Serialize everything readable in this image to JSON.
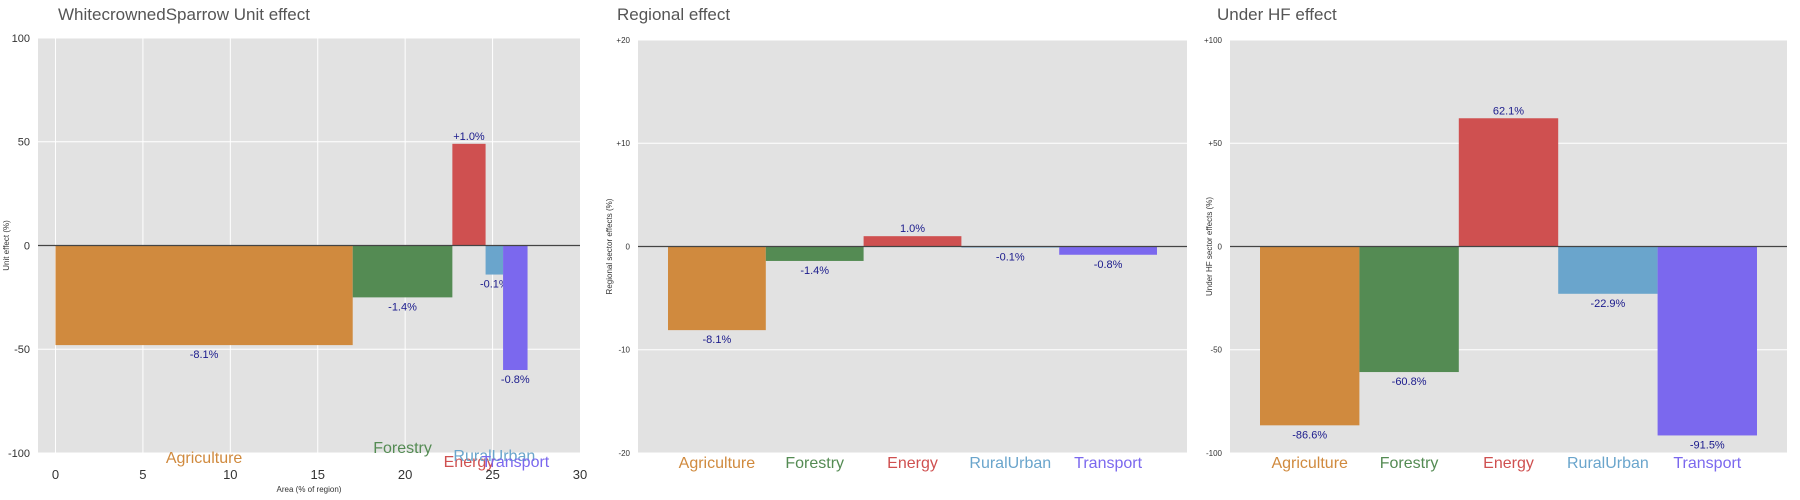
{
  "chart_data": [
    {
      "type": "bar",
      "title": "WhitecrownedSparrow Unit effect",
      "xlabel": "Area (% of region)",
      "ylabel": "Unit effect (%)",
      "xlim": [
        -1,
        30
      ],
      "ylim": [
        -100,
        100
      ],
      "xticks": [
        0,
        5,
        10,
        15,
        20,
        25,
        30
      ],
      "yticks": [
        -100,
        -50,
        0,
        50,
        100
      ],
      "ytick_labels": [
        "-100",
        "-50",
        "0",
        "50",
        "100"
      ],
      "variable_width": true,
      "grid": true,
      "categories": [
        "Agriculture",
        "Forestry",
        "Energy",
        "RuralUrban",
        "Transport"
      ],
      "x_start": [
        0,
        17,
        22.7,
        24.6,
        25.6
      ],
      "x_end": [
        17,
        22.7,
        24.6,
        25.6,
        27
      ],
      "values": [
        -48,
        -25,
        49,
        -14,
        -60
      ],
      "data_labels": [
        "-8.1%",
        "-1.4%",
        "+1.0%",
        "-0.1%",
        "-0.8%"
      ],
      "colors": [
        "#d08a3e",
        "#548b53",
        "#cf5050",
        "#6aa5cc",
        "#7b68ee"
      ]
    },
    {
      "type": "bar",
      "title": "Regional effect",
      "xlabel": "",
      "ylabel": "Regional sector effects (%)",
      "ylim": [
        -20,
        20
      ],
      "yticks": [
        -20,
        -10,
        0,
        10,
        20
      ],
      "ytick_labels": [
        "-20",
        "-10",
        "0",
        "+10",
        "+20"
      ],
      "grid": true,
      "categories": [
        "Agriculture",
        "Forestry",
        "Energy",
        "RuralUrban",
        "Transport"
      ],
      "values": [
        -8.1,
        -1.4,
        1.0,
        -0.1,
        -0.8
      ],
      "data_labels": [
        "-8.1%",
        "-1.4%",
        "1.0%",
        "-0.1%",
        "-0.8%"
      ],
      "colors": [
        "#d08a3e",
        "#548b53",
        "#cf5050",
        "#6aa5cc",
        "#7b68ee"
      ]
    },
    {
      "type": "bar",
      "title": "Under HF effect",
      "xlabel": "",
      "ylabel": "Under HF sector effects (%)",
      "ylim": [
        -100,
        100
      ],
      "yticks": [
        -100,
        -50,
        0,
        50,
        100
      ],
      "ytick_labels": [
        "-100",
        "-50",
        "0",
        "+50",
        "+100"
      ],
      "grid": true,
      "categories": [
        "Agriculture",
        "Forestry",
        "Energy",
        "RuralUrban",
        "Transport"
      ],
      "values": [
        -86.6,
        -60.8,
        62.1,
        -22.9,
        -91.5
      ],
      "data_labels": [
        "-86.6%",
        "-60.8%",
        "62.1%",
        "-22.9%",
        "-91.5%"
      ],
      "colors": [
        "#d08a3e",
        "#548b53",
        "#cf5050",
        "#6aa5cc",
        "#7b68ee"
      ]
    }
  ]
}
